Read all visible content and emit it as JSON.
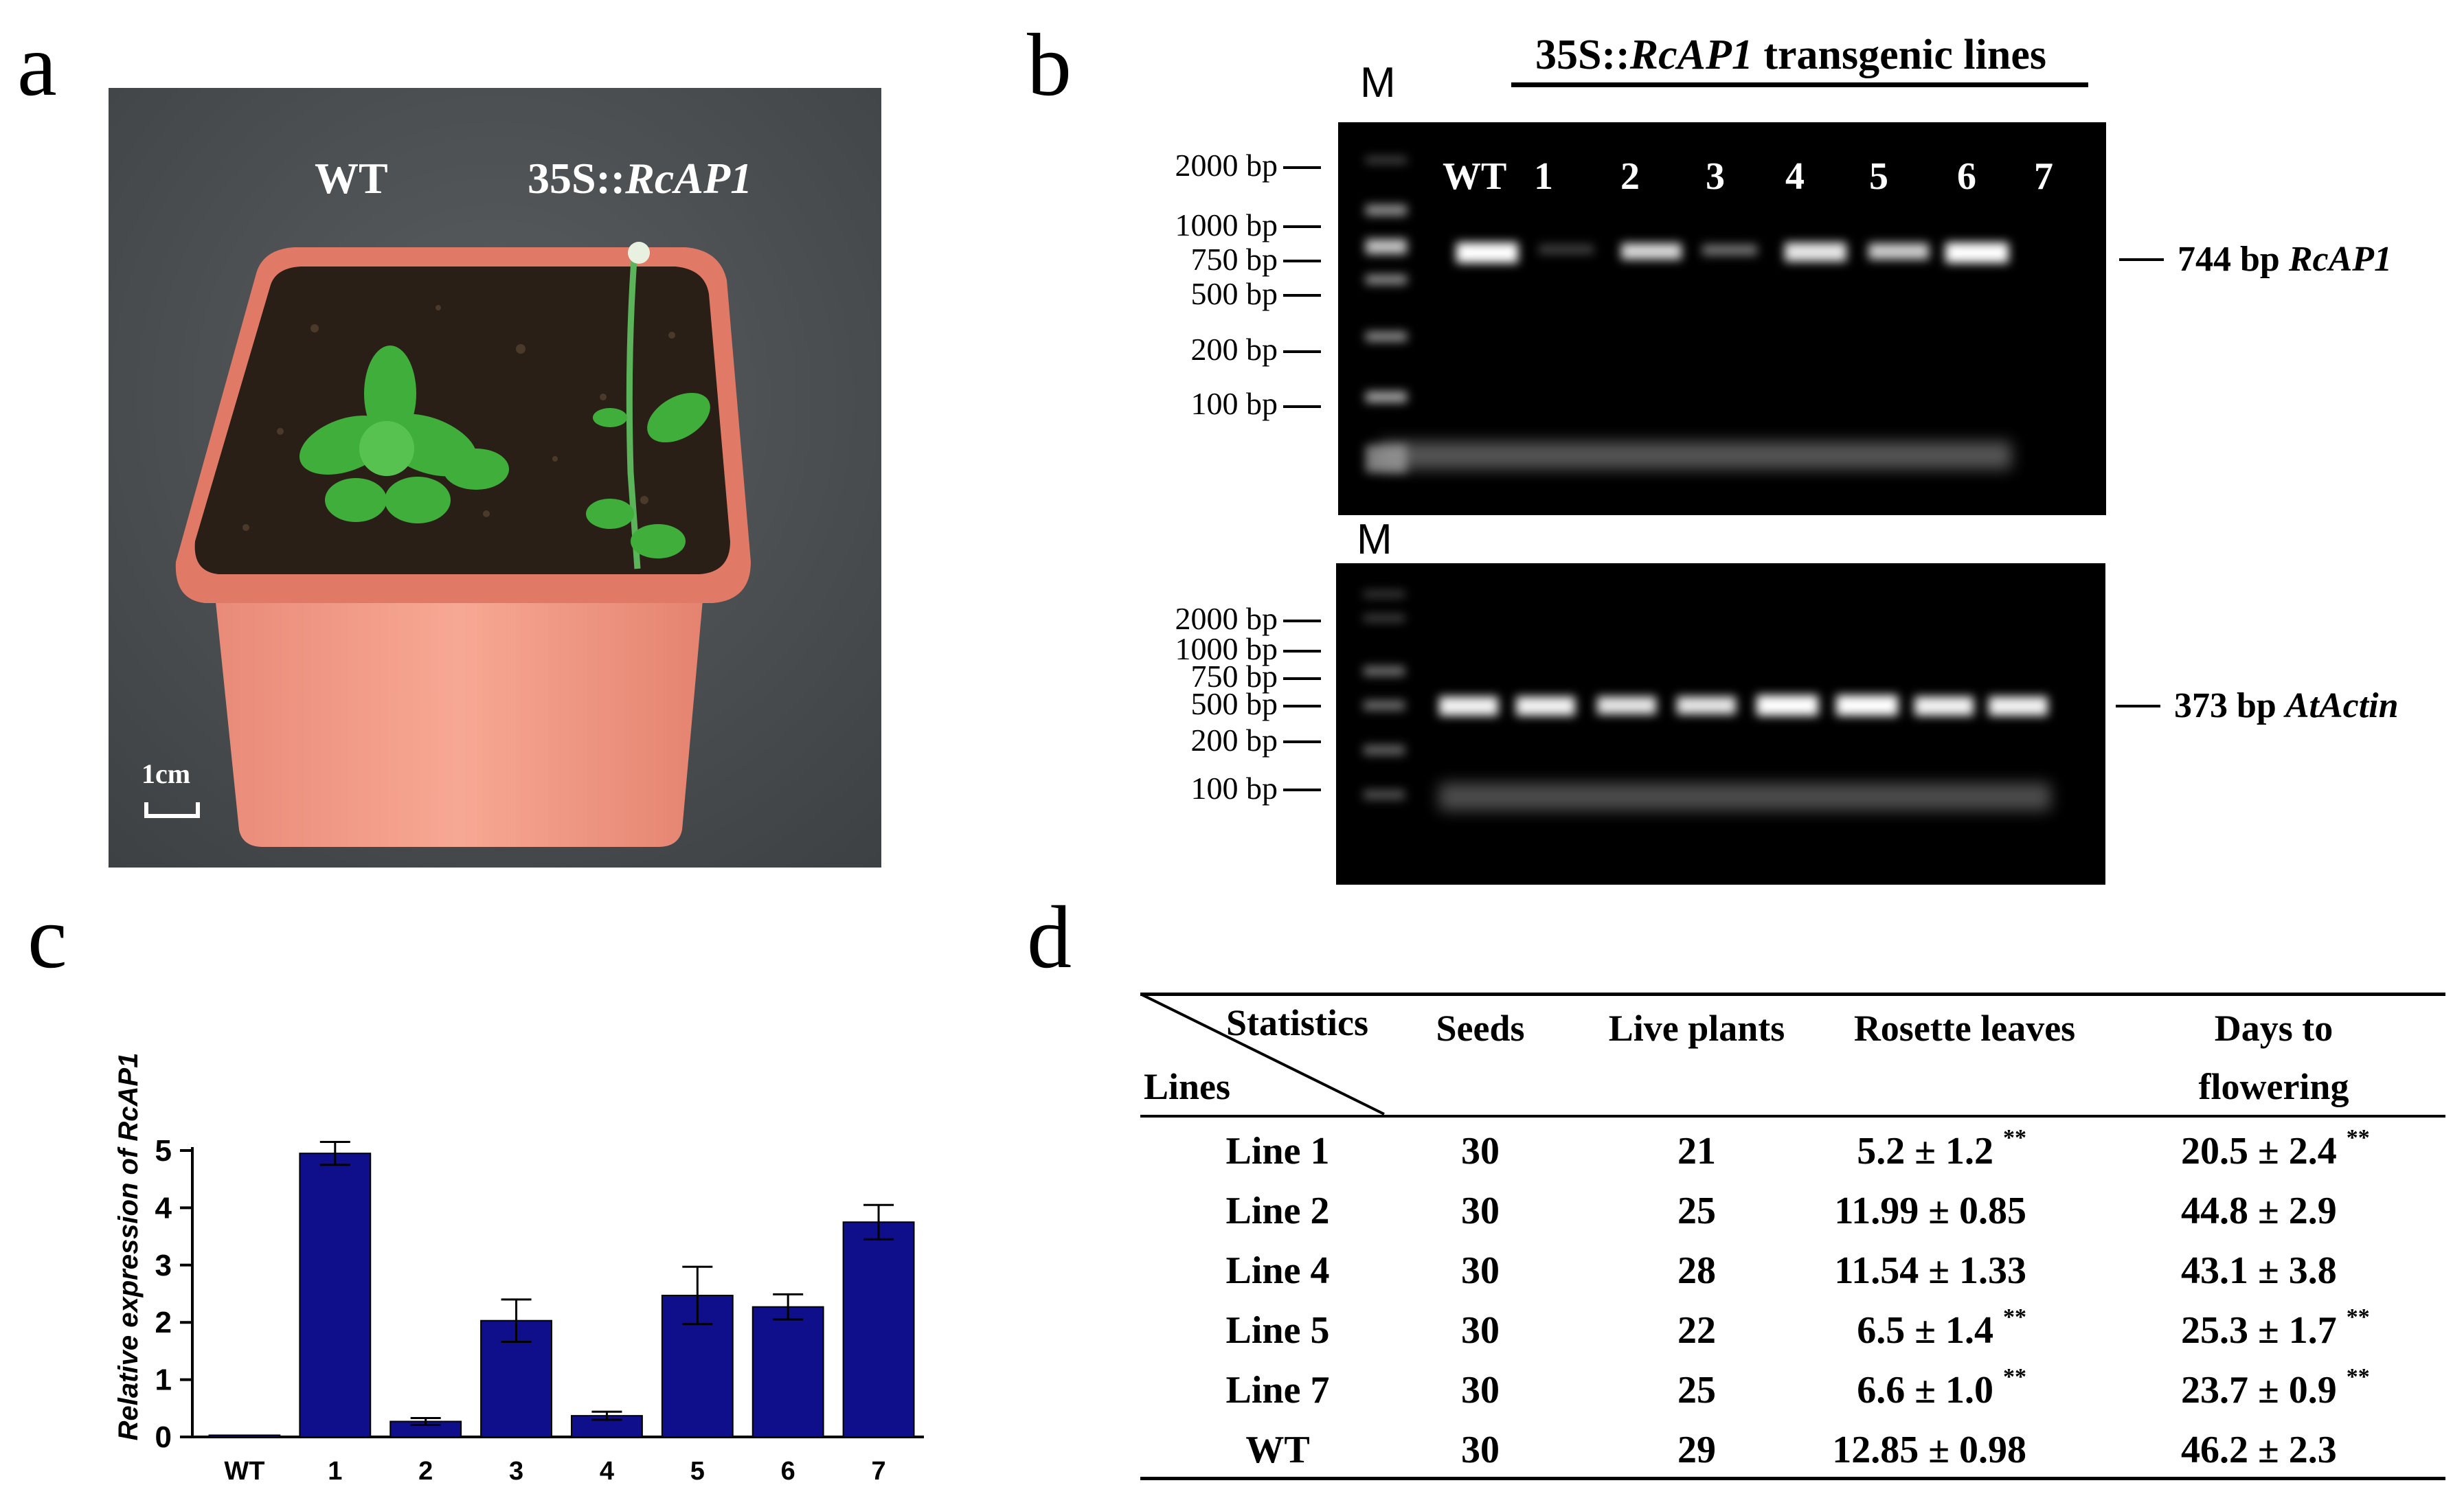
{
  "panels": {
    "a": {
      "letter": "a",
      "label_wt": "WT",
      "label_transgenic_prefix": "35S::",
      "label_transgenic_gene": "RcAP1",
      "scale_bar": "1cm"
    },
    "b": {
      "letter": "b",
      "title_prefix": "35S::",
      "title_gene": "RcAP1",
      "title_suffix": " transgenic lines",
      "marker": "M",
      "lanes": [
        "WT",
        "1",
        "2",
        "3",
        "4",
        "5",
        "6",
        "7"
      ],
      "top_gel_ladder": [
        "2000 bp",
        "1000 bp",
        "750 bp",
        "500 bp",
        "200 bp",
        "100 bp"
      ],
      "bottom_gel_ladder": [
        "2000 bp",
        "1000 bp",
        "750 bp",
        "500 bp",
        "200 bp",
        "100 bp"
      ],
      "top_band_size": "744 bp",
      "top_band_gene": "RcAP1",
      "bottom_band_size": "373 bp",
      "bottom_band_gene": "AtActin"
    },
    "c": {
      "letter": "c"
    },
    "d": {
      "letter": "d"
    }
  },
  "chart_data": {
    "type": "bar",
    "title": "",
    "xlabel": "",
    "ylabel": "Relative expression of RcAP1",
    "categories": [
      "WT",
      "1",
      "2",
      "3",
      "4",
      "5",
      "6",
      "7"
    ],
    "values": [
      0.03,
      4.95,
      0.27,
      2.03,
      0.37,
      2.47,
      2.27,
      3.75
    ],
    "errors": [
      0.02,
      0.2,
      0.06,
      0.37,
      0.07,
      0.5,
      0.22,
      0.3
    ],
    "yticks": [
      "0",
      "1",
      "2",
      "3",
      "4",
      "5"
    ],
    "ylim": [
      0,
      5.3
    ],
    "bar_color": "#0f0f8c",
    "grid": false
  },
  "table": {
    "header_diag_top": "Statistics",
    "header_diag_bottom": "Lines",
    "columns": [
      "Seeds",
      "Live plants",
      "Rosette leaves",
      "Days to flowering"
    ],
    "columns_wrapped": {
      "days_line1": "Days to",
      "days_line2": "flowering"
    },
    "significance": "**",
    "rows": [
      {
        "line": "Line 1",
        "seeds": "30",
        "live": "21",
        "rosette": "5.2 ± 1.2",
        "rosette_sig": true,
        "days": "20.5 ± 2.4",
        "days_sig": true
      },
      {
        "line": "Line 2",
        "seeds": "30",
        "live": "25",
        "rosette": "11.99 ± 0.85",
        "rosette_sig": false,
        "days": "44.8 ± 2.9",
        "days_sig": false
      },
      {
        "line": "Line 4",
        "seeds": "30",
        "live": "28",
        "rosette": "11.54 ± 1.33",
        "rosette_sig": false,
        "days": "43.1 ± 3.8",
        "days_sig": false
      },
      {
        "line": "Line 5",
        "seeds": "30",
        "live": "22",
        "rosette": "6.5 ± 1.4",
        "rosette_sig": true,
        "days": "25.3 ± 1.7",
        "days_sig": true
      },
      {
        "line": "Line 7",
        "seeds": "30",
        "live": "25",
        "rosette": "6.6 ± 1.0",
        "rosette_sig": true,
        "days": "23.7 ± 0.9",
        "days_sig": true
      },
      {
        "line": "WT",
        "seeds": "30",
        "live": "29",
        "rosette": "12.85 ± 0.98",
        "rosette_sig": false,
        "days": "46.2 ± 2.3",
        "days_sig": false
      }
    ]
  }
}
